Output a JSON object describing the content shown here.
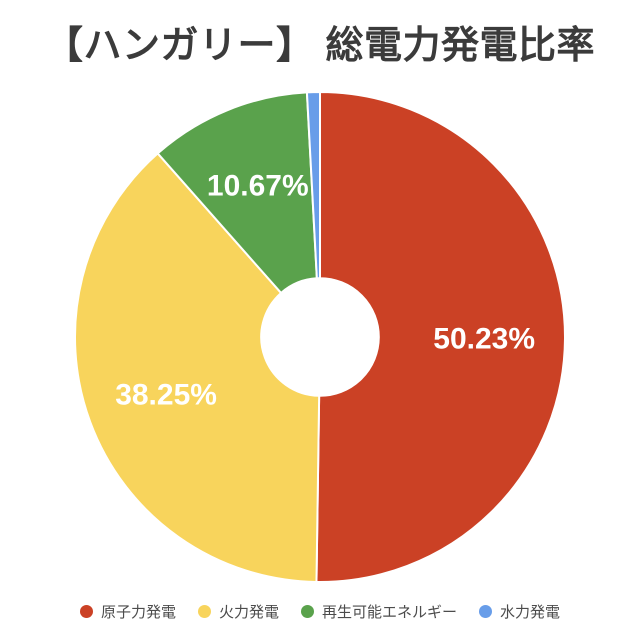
{
  "title": "【ハンガリー】 総電力発電比率",
  "colors": {
    "title": "#3b3b3b",
    "legend_text": "#4c4c4c",
    "background": "#ffffff",
    "slice_label": "#ffffff",
    "slice_border": "#ffffff"
  },
  "chart_data": {
    "type": "pie",
    "donut": true,
    "hole_ratio": 0.24,
    "start_angle_deg": 0,
    "direction": "clockwise",
    "title": "【ハンガリー】 総電力発電比率",
    "legend_position": "bottom",
    "label_color": "#ffffff",
    "slices": [
      {
        "key": "nuclear",
        "name": "原子力発電",
        "value": 50.23,
        "label": "50.23%",
        "color": "#cb4125"
      },
      {
        "key": "thermal",
        "name": "火力発電",
        "value": 38.25,
        "label": "38.25%",
        "color": "#f8d45c"
      },
      {
        "key": "renewable",
        "name": "再生可能エネルギー",
        "value": 10.67,
        "label": "10.67%",
        "color": "#5aa24c"
      },
      {
        "key": "hydro",
        "name": "水力発電",
        "value": 0.85,
        "label": null,
        "color": "#689de9"
      }
    ]
  }
}
